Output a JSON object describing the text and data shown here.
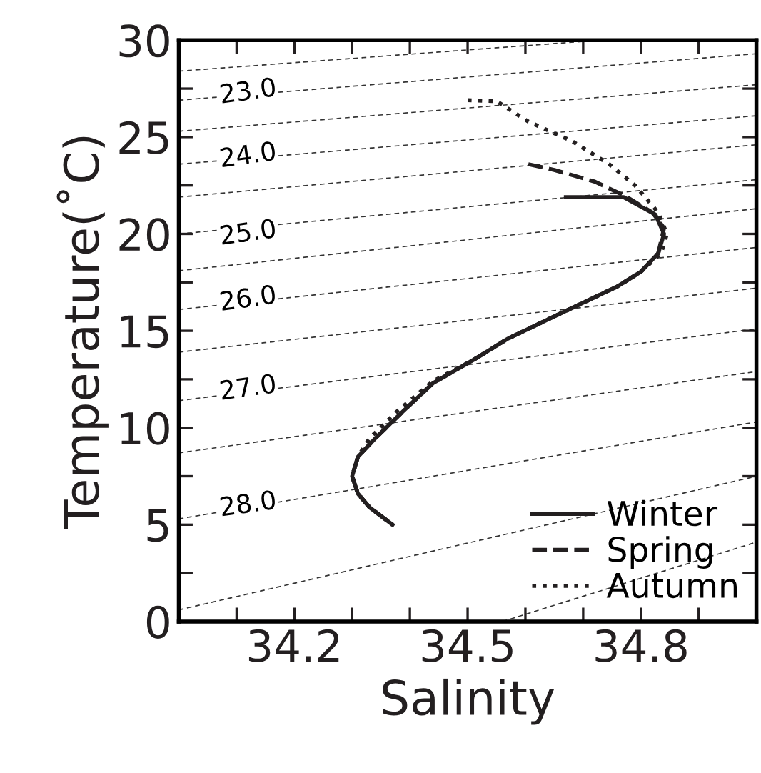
{
  "chart_data": {
    "type": "line",
    "xlabel": "Salinity",
    "ylabel": "Temperature(˚C)",
    "xlim": [
      34.0,
      35.0
    ],
    "ylim": [
      0,
      30
    ],
    "xticks": [
      {
        "value": 34.1,
        "label": null
      },
      34.2,
      {
        "value": 34.3,
        "label": null
      },
      {
        "value": 34.4,
        "label": null
      },
      34.5,
      {
        "value": 34.6,
        "label": null
      },
      {
        "value": 34.7,
        "label": null
      },
      34.8,
      {
        "value": 34.9,
        "label": null
      }
    ],
    "yticks": [
      0,
      {
        "value": 2.5,
        "label": null
      },
      5,
      {
        "value": 7.5,
        "label": null
      },
      10,
      {
        "value": 12.5,
        "label": null
      },
      15,
      {
        "value": 17.5,
        "label": null
      },
      20,
      {
        "value": 22.5,
        "label": null
      },
      25,
      {
        "value": 27.5,
        "label": null
      },
      30
    ],
    "grid": false,
    "legend": "bottom right",
    "series": [
      {
        "color": "#333333",
        "line_style": "dashed",
        "x": [
          34.0,
          34.73
        ],
        "values": [
          28.4,
          30.0
        ]
      },
      {
        "color": "#333333",
        "line_style": "dashed",
        "x": [
          34.0,
          35.0
        ],
        "values": [
          26.9,
          29.3
        ]
      },
      {
        "color": "#333333",
        "line_style": "dashed",
        "x": [
          34.0,
          35.0
        ],
        "values": [
          25.3,
          27.7
        ]
      },
      {
        "color": "#333333",
        "line_style": "dashed",
        "x": [
          34.0,
          35.0
        ],
        "values": [
          23.6,
          26.1
        ]
      },
      {
        "color": "#333333",
        "line_style": "dashed",
        "x": [
          34.0,
          35.0
        ],
        "values": [
          21.9,
          24.6
        ]
      },
      {
        "color": "#333333",
        "line_style": "dashed",
        "x": [
          34.0,
          35.0
        ],
        "values": [
          20.0,
          22.8
        ]
      },
      {
        "color": "#333333",
        "line_style": "dashed",
        "x": [
          34.0,
          35.0
        ],
        "values": [
          18.1,
          21.3
        ]
      },
      {
        "color": "#333333",
        "line_style": "dashed",
        "x": [
          34.0,
          35.0
        ],
        "values": [
          16.1,
          19.3
        ]
      },
      {
        "color": "#333333",
        "line_style": "dashed",
        "x": [
          34.0,
          35.0
        ],
        "values": [
          13.9,
          17.2
        ]
      },
      {
        "color": "#333333",
        "line_style": "dashed",
        "x": [
          34.0,
          35.0
        ],
        "values": [
          11.4,
          15.1
        ]
      },
      {
        "color": "#333333",
        "line_style": "dashed",
        "x": [
          34.0,
          35.0
        ],
        "values": [
          8.7,
          12.9
        ]
      },
      {
        "color": "#333333",
        "line_style": "dashed",
        "x": [
          34.0,
          35.0
        ],
        "values": [
          5.3,
          10.3
        ]
      },
      {
        "color": "#333333",
        "line_style": "dashed",
        "x": [
          34.0,
          35.0
        ],
        "values": [
          0.6,
          7.5
        ]
      },
      {
        "color": "#333333",
        "line_style": "dashed",
        "x": [
          34.56,
          35.0
        ],
        "values": [
          0.0,
          4.1
        ]
      },
      {
        "name": "Winter",
        "color": "#231f20",
        "line_style": "solid",
        "x": [
          34.67,
          34.77,
          34.825,
          34.84,
          34.83,
          34.8,
          34.76,
          34.7,
          34.64,
          34.57,
          34.51,
          34.44,
          34.39,
          34.34,
          34.31,
          34.3,
          34.31,
          34.33,
          34.37
        ],
        "values": [
          21.9,
          21.9,
          21.0,
          20.0,
          19.0,
          18.05,
          17.3,
          16.45,
          15.6,
          14.6,
          13.5,
          12.3,
          10.9,
          9.45,
          8.5,
          7.5,
          6.6,
          5.9,
          5.0
        ]
      },
      {
        "name": "Spring",
        "color": "#231f20",
        "line_style": "dashed",
        "x": [
          34.605,
          34.65,
          34.72,
          34.77,
          34.82,
          34.84,
          34.83,
          34.8,
          34.76,
          34.7,
          34.64,
          34.57,
          34.51,
          34.44,
          34.39,
          34.34,
          34.31,
          34.3,
          34.31,
          34.33,
          34.37
        ],
        "values": [
          23.6,
          23.3,
          22.7,
          22.0,
          21.1,
          20.3,
          19.0,
          18.05,
          17.3,
          16.45,
          15.6,
          14.6,
          13.5,
          12.3,
          10.9,
          9.45,
          8.5,
          7.5,
          6.6,
          5.9,
          5.0
        ]
      },
      {
        "name": "Autumn",
        "color": "#231f20",
        "line_style": "dotted",
        "x": [
          34.5,
          34.55,
          34.605,
          34.68,
          34.745,
          34.79,
          34.83,
          34.845,
          34.835,
          34.8,
          34.76,
          34.7,
          34.64,
          34.57,
          34.51,
          34.44,
          34.38,
          34.33,
          34.31,
          34.3,
          34.31,
          34.33,
          34.37
        ],
        "values": [
          26.9,
          26.85,
          25.8,
          24.8,
          23.6,
          22.5,
          21.1,
          20.0,
          19.0,
          18.05,
          17.3,
          16.45,
          15.6,
          14.6,
          13.5,
          12.4,
          10.9,
          9.45,
          8.5,
          7.5,
          6.6,
          5.9,
          5.0
        ]
      }
    ],
    "annotations": [
      {
        "text": "23.0",
        "y": 27.3
      },
      {
        "text": "24.0",
        "y": 24.0
      },
      {
        "text": "25.0",
        "y": 20.0
      },
      {
        "text": "26.0",
        "y": 16.6
      },
      {
        "text": "27.0",
        "y": 12.0
      },
      {
        "text": "28.0",
        "y": 6.0
      }
    ]
  }
}
